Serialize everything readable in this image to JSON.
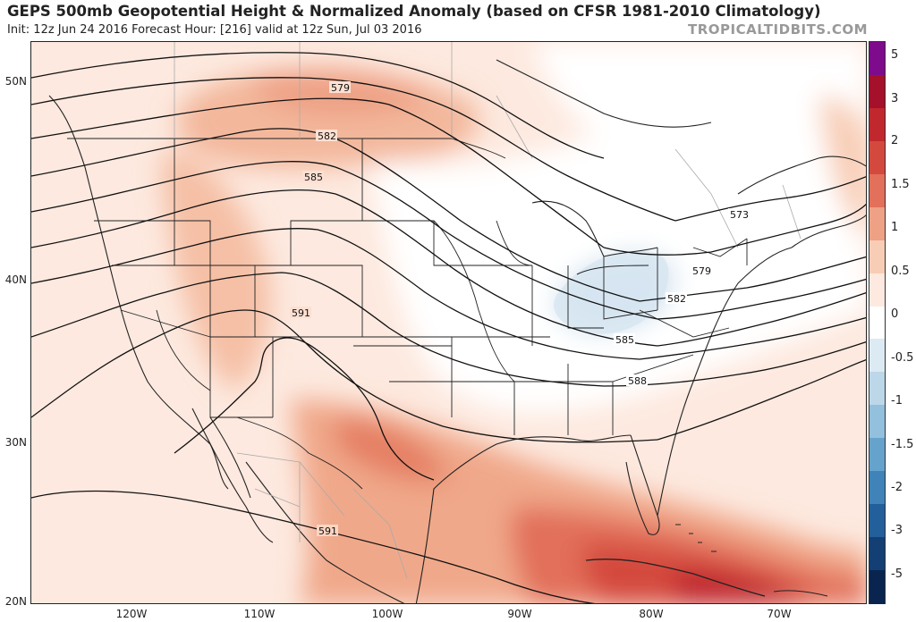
{
  "header": {
    "title": "GEPS 500mb Geopotential Height & Normalized Anomaly (based on CFSR 1981-2010 Climatology)",
    "subtitle": "Init: 12z Jun 24 2016   Forecast Hour: [216]   valid at 12z Sun, Jul 03 2016",
    "brand": "TROPICALTIDBITS.COM"
  },
  "axes": {
    "latitudes": [
      "50N",
      "40N",
      "30N",
      "20N"
    ],
    "longitudes": [
      "120W",
      "110W",
      "100W",
      "90W",
      "80W",
      "70W"
    ]
  },
  "contours": {
    "labels": [
      "579",
      "582",
      "585",
      "591",
      "573",
      "579",
      "582",
      "585",
      "588",
      "591"
    ]
  },
  "colorbar": {
    "labels": [
      "5",
      "3",
      "2",
      "1.5",
      "1",
      "0.5",
      "0",
      "-0.5",
      "-1",
      "-1.5",
      "-2",
      "-3",
      "-5"
    ],
    "colors": [
      "#7e0a8c",
      "#a5102a",
      "#c0282e",
      "#d4493e",
      "#e2705a",
      "#eea185",
      "#f8cdb6",
      "#fde9df",
      "#ffffff",
      "#dceaf3",
      "#bcd7e8",
      "#93c0dc",
      "#66a3cc",
      "#3f83b8",
      "#235f9b",
      "#133f74",
      "#0a2450"
    ]
  }
}
